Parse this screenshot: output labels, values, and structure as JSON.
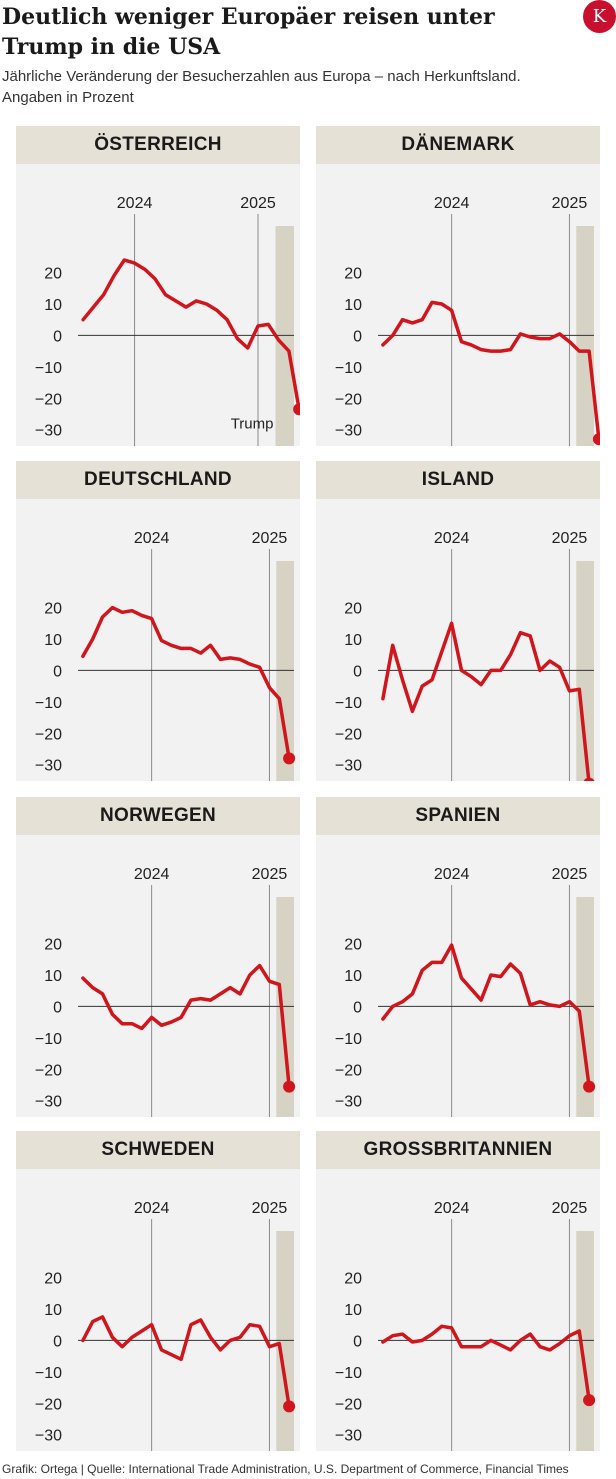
{
  "title": "Deutlich weniger Europäer reisen unter Trump in die USA",
  "subtitle": "Jährliche Veränderung der Besucherzahlen aus Europa – nach Herkunftsland. Angaben in Prozent",
  "logo_letter": "K",
  "source": "Grafik: Ortega | Quelle: International Trade Administration, U.S. Department of Commerce, Financial Times",
  "colors": {
    "line": "#d0151c",
    "shade": "#d6d2c4",
    "header": "#e5e1d6",
    "panel": "#f2f2f2",
    "logo": "#c8102e"
  },
  "annotation": "Trump",
  "chart_data": [
    {
      "type": "line",
      "title": "ÖSTERREICH",
      "x_ticks": [
        {
          "label": "2024",
          "x": 5
        },
        {
          "label": "2025",
          "x": 17
        }
      ],
      "y_ticks": [
        20,
        10,
        0,
        -10,
        -20,
        -30
      ],
      "ylim": [
        -32,
        24
      ],
      "xlim": [
        -0.5,
        20.5
      ],
      "shade_from": 18.7,
      "values": [
        5,
        9,
        13,
        19,
        24,
        23,
        21,
        18,
        13,
        11,
        9,
        11,
        10,
        8,
        5,
        -1,
        -4,
        3,
        3.5,
        -1.5,
        -5,
        -23.5
      ],
      "annotation": "Trump"
    },
    {
      "type": "line",
      "title": "DÄNEMARK",
      "x_ticks": [
        {
          "label": "2024",
          "x": 7
        },
        {
          "label": "2025",
          "x": 19
        }
      ],
      "y_ticks": [
        20,
        10,
        0,
        -10,
        -20,
        -30
      ],
      "ylim": [
        -32,
        24
      ],
      "xlim": [
        -0.5,
        21.5
      ],
      "shade_from": 19.7,
      "values": [
        -3,
        0,
        5,
        4,
        5,
        10.5,
        10,
        8,
        -2,
        -3,
        -4.5,
        -5,
        -5,
        -4.5,
        0.5,
        -0.5,
        -1,
        -1,
        0.5,
        -2,
        -5,
        -5,
        -33
      ]
    },
    {
      "type": "line",
      "title": "DEUTSCHLAND",
      "x_ticks": [
        {
          "label": "2024",
          "x": 7
        },
        {
          "label": "2025",
          "x": 19
        }
      ],
      "y_ticks": [
        20,
        10,
        0,
        -10,
        -20,
        -30
      ],
      "ylim": [
        -32,
        24
      ],
      "xlim": [
        -0.5,
        21.5
      ],
      "shade_from": 19.7,
      "values": [
        4.5,
        10,
        17,
        20,
        18.5,
        19,
        17.5,
        16.5,
        9.5,
        8,
        7,
        7,
        5.5,
        8,
        3.5,
        4,
        3.5,
        2,
        1,
        -5.5,
        -9,
        -28
      ]
    },
    {
      "type": "line",
      "title": "ISLAND",
      "x_ticks": [
        {
          "label": "2024",
          "x": 7
        },
        {
          "label": "2025",
          "x": 19
        }
      ],
      "y_ticks": [
        20,
        10,
        0,
        -10,
        -20,
        -30
      ],
      "ylim": [
        -32,
        24
      ],
      "xlim": [
        -0.5,
        21.5
      ],
      "shade_from": 19.7,
      "values": [
        -9,
        8,
        -3,
        -13,
        -5,
        -3,
        6,
        15,
        0,
        -2,
        -4.5,
        0,
        0,
        5,
        12,
        11,
        0,
        3,
        1,
        -6.5,
        -6,
        -36
      ]
    },
    {
      "type": "line",
      "title": "NORWEGEN",
      "x_ticks": [
        {
          "label": "2024",
          "x": 7
        },
        {
          "label": "2025",
          "x": 19
        }
      ],
      "y_ticks": [
        20,
        10,
        0,
        -10,
        -20,
        -30
      ],
      "ylim": [
        -32,
        24
      ],
      "xlim": [
        -0.5,
        21.5
      ],
      "shade_from": 19.7,
      "values": [
        9,
        6,
        4,
        -2.5,
        -5.5,
        -5.5,
        -7,
        -3.5,
        -6,
        -5,
        -3.5,
        2,
        2.5,
        2,
        4,
        6,
        4,
        10,
        13,
        8,
        7,
        -25.5
      ]
    },
    {
      "type": "line",
      "title": "SPANIEN",
      "x_ticks": [
        {
          "label": "2024",
          "x": 7
        },
        {
          "label": "2025",
          "x": 19
        }
      ],
      "y_ticks": [
        20,
        10,
        0,
        -10,
        -20,
        -30
      ],
      "ylim": [
        -32,
        24
      ],
      "xlim": [
        -0.5,
        21.5
      ],
      "shade_from": 19.7,
      "values": [
        -4,
        0,
        1.5,
        4,
        11.5,
        14,
        14,
        19.5,
        9,
        5.5,
        2,
        10,
        9.5,
        13.5,
        10.5,
        0.5,
        1.5,
        0.5,
        0,
        1.5,
        -1.5,
        -25.5
      ]
    },
    {
      "type": "line",
      "title": "SCHWEDEN",
      "x_ticks": [
        {
          "label": "2024",
          "x": 7
        },
        {
          "label": "2025",
          "x": 19
        }
      ],
      "y_ticks": [
        20,
        10,
        0,
        -10,
        -20,
        -30
      ],
      "ylim": [
        -32,
        24
      ],
      "xlim": [
        -0.5,
        21.5
      ],
      "shade_from": 19.7,
      "values": [
        0,
        6,
        7.5,
        1,
        -2,
        1,
        3,
        5,
        -3,
        -4.5,
        -6,
        5,
        6.5,
        1,
        -3,
        0,
        1,
        5,
        4.5,
        -2,
        -1,
        -21
      ]
    },
    {
      "type": "line",
      "title": "GROSSBRITANNIEN",
      "x_ticks": [
        {
          "label": "2024",
          "x": 7
        },
        {
          "label": "2025",
          "x": 19
        }
      ],
      "y_ticks": [
        20,
        10,
        0,
        -10,
        -20,
        -30
      ],
      "ylim": [
        -32,
        24
      ],
      "xlim": [
        -0.5,
        21.5
      ],
      "shade_from": 19.7,
      "values": [
        -0.5,
        1.5,
        2,
        -0.5,
        0,
        2,
        4.5,
        4,
        -2,
        -2,
        -2,
        0,
        -1.5,
        -3,
        0,
        2,
        -2,
        -3,
        -1,
        1.5,
        3,
        -19
      ]
    }
  ]
}
